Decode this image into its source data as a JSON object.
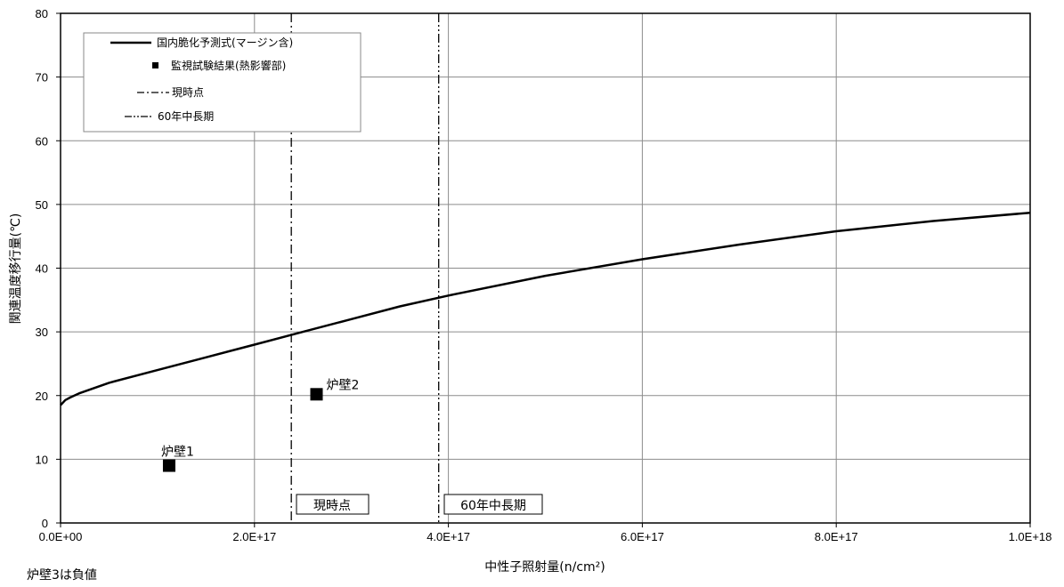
{
  "chart_data": {
    "type": "line",
    "xlabel": "中性子照射量(n/cm²)",
    "ylabel": "関連温度移行量(℃)",
    "xlim": [
      0,
      1e+18
    ],
    "ylim": [
      0,
      80
    ],
    "x_ticks": [
      0,
      2e+17,
      4e+17,
      6e+17,
      8e+17,
      1e+18
    ],
    "x_tick_labels": [
      "0.0E+00",
      "2.0E+17",
      "4.0E+17",
      "6.0E+17",
      "8.0E+17",
      "1.0E+18"
    ],
    "y_ticks": [
      0,
      10,
      20,
      30,
      40,
      50,
      60,
      70,
      80
    ],
    "y_tick_labels": [
      "0",
      "10",
      "20",
      "30",
      "40",
      "50",
      "60",
      "70",
      "80"
    ],
    "grid": true,
    "legend_position": "top-left",
    "series": [
      {
        "name": "国内脆化予測式(マージン含)",
        "style": "solid",
        "x": [
          0,
          5000000000000000.0,
          1e+16,
          2e+16,
          5e+16,
          1e+17,
          1.5e+17,
          2e+17,
          2.5e+17,
          3e+17,
          3.5e+17,
          4e+17,
          5e+17,
          6e+17,
          7e+17,
          8e+17,
          9e+17,
          1e+18
        ],
        "y": [
          18.5,
          19.3,
          19.7,
          20.4,
          22.0,
          24.0,
          26.0,
          28.0,
          30.0,
          32.0,
          34.0,
          35.7,
          38.8,
          41.4,
          43.7,
          45.8,
          47.4,
          48.7
        ]
      }
    ],
    "points": [
      {
        "name": "監視試験結果(熱影響部)",
        "label": "炉壁1",
        "x": 1.12e+17,
        "y": 9.0
      },
      {
        "name": "監視試験結果(熱影響部)",
        "label": "炉壁2",
        "x": 2.64e+17,
        "y": 20.2
      }
    ],
    "vlines": [
      {
        "name": "現時点",
        "label": "現時点",
        "x": 2.38e+17,
        "style": "dash-dot"
      },
      {
        "name": "60年中長期",
        "label": "60年中長期",
        "x": 3.9e+17,
        "style": "dash-dot-dot"
      }
    ],
    "legend_marker_name": "監視試験結果(熱影響部)",
    "note": "炉壁3は負値"
  }
}
